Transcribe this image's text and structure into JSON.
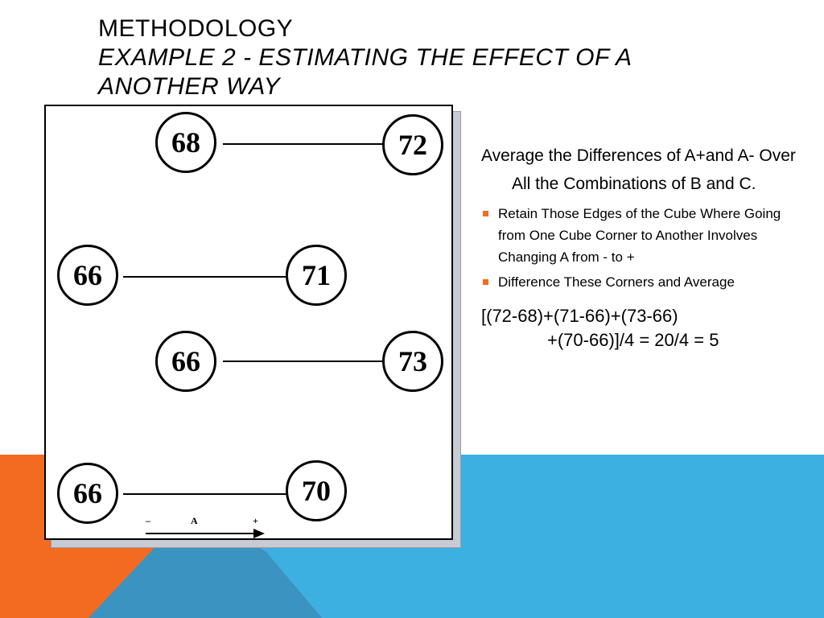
{
  "slide": {
    "title": "Methodology",
    "subtitle": "Example 2 - Estimating the Effect of A Another Way"
  },
  "colors": {
    "accent_orange": "#f26b21",
    "accent_blue": "#3cb0e0",
    "accent_blue_dark": "#3a93c1"
  },
  "diagram": {
    "nodes": [
      "68",
      "72",
      "66",
      "71",
      "66",
      "73",
      "66",
      "70"
    ],
    "axis": {
      "minus": "–",
      "label": "A",
      "plus": "+"
    }
  },
  "body": {
    "lead": "Average the Differences of A+and A- Over All the Combinations of B and C.",
    "bullets": [
      "Retain Those Edges of the Cube Where Going from One Cube Corner to Another Involves Changing A from - to +",
      "Difference These Corners and Average"
    ],
    "formula_line1": "[(72-68)+(71-66)+(73-66)",
    "formula_line2": "+(70-66)]/4 = 20/4 = 5"
  }
}
